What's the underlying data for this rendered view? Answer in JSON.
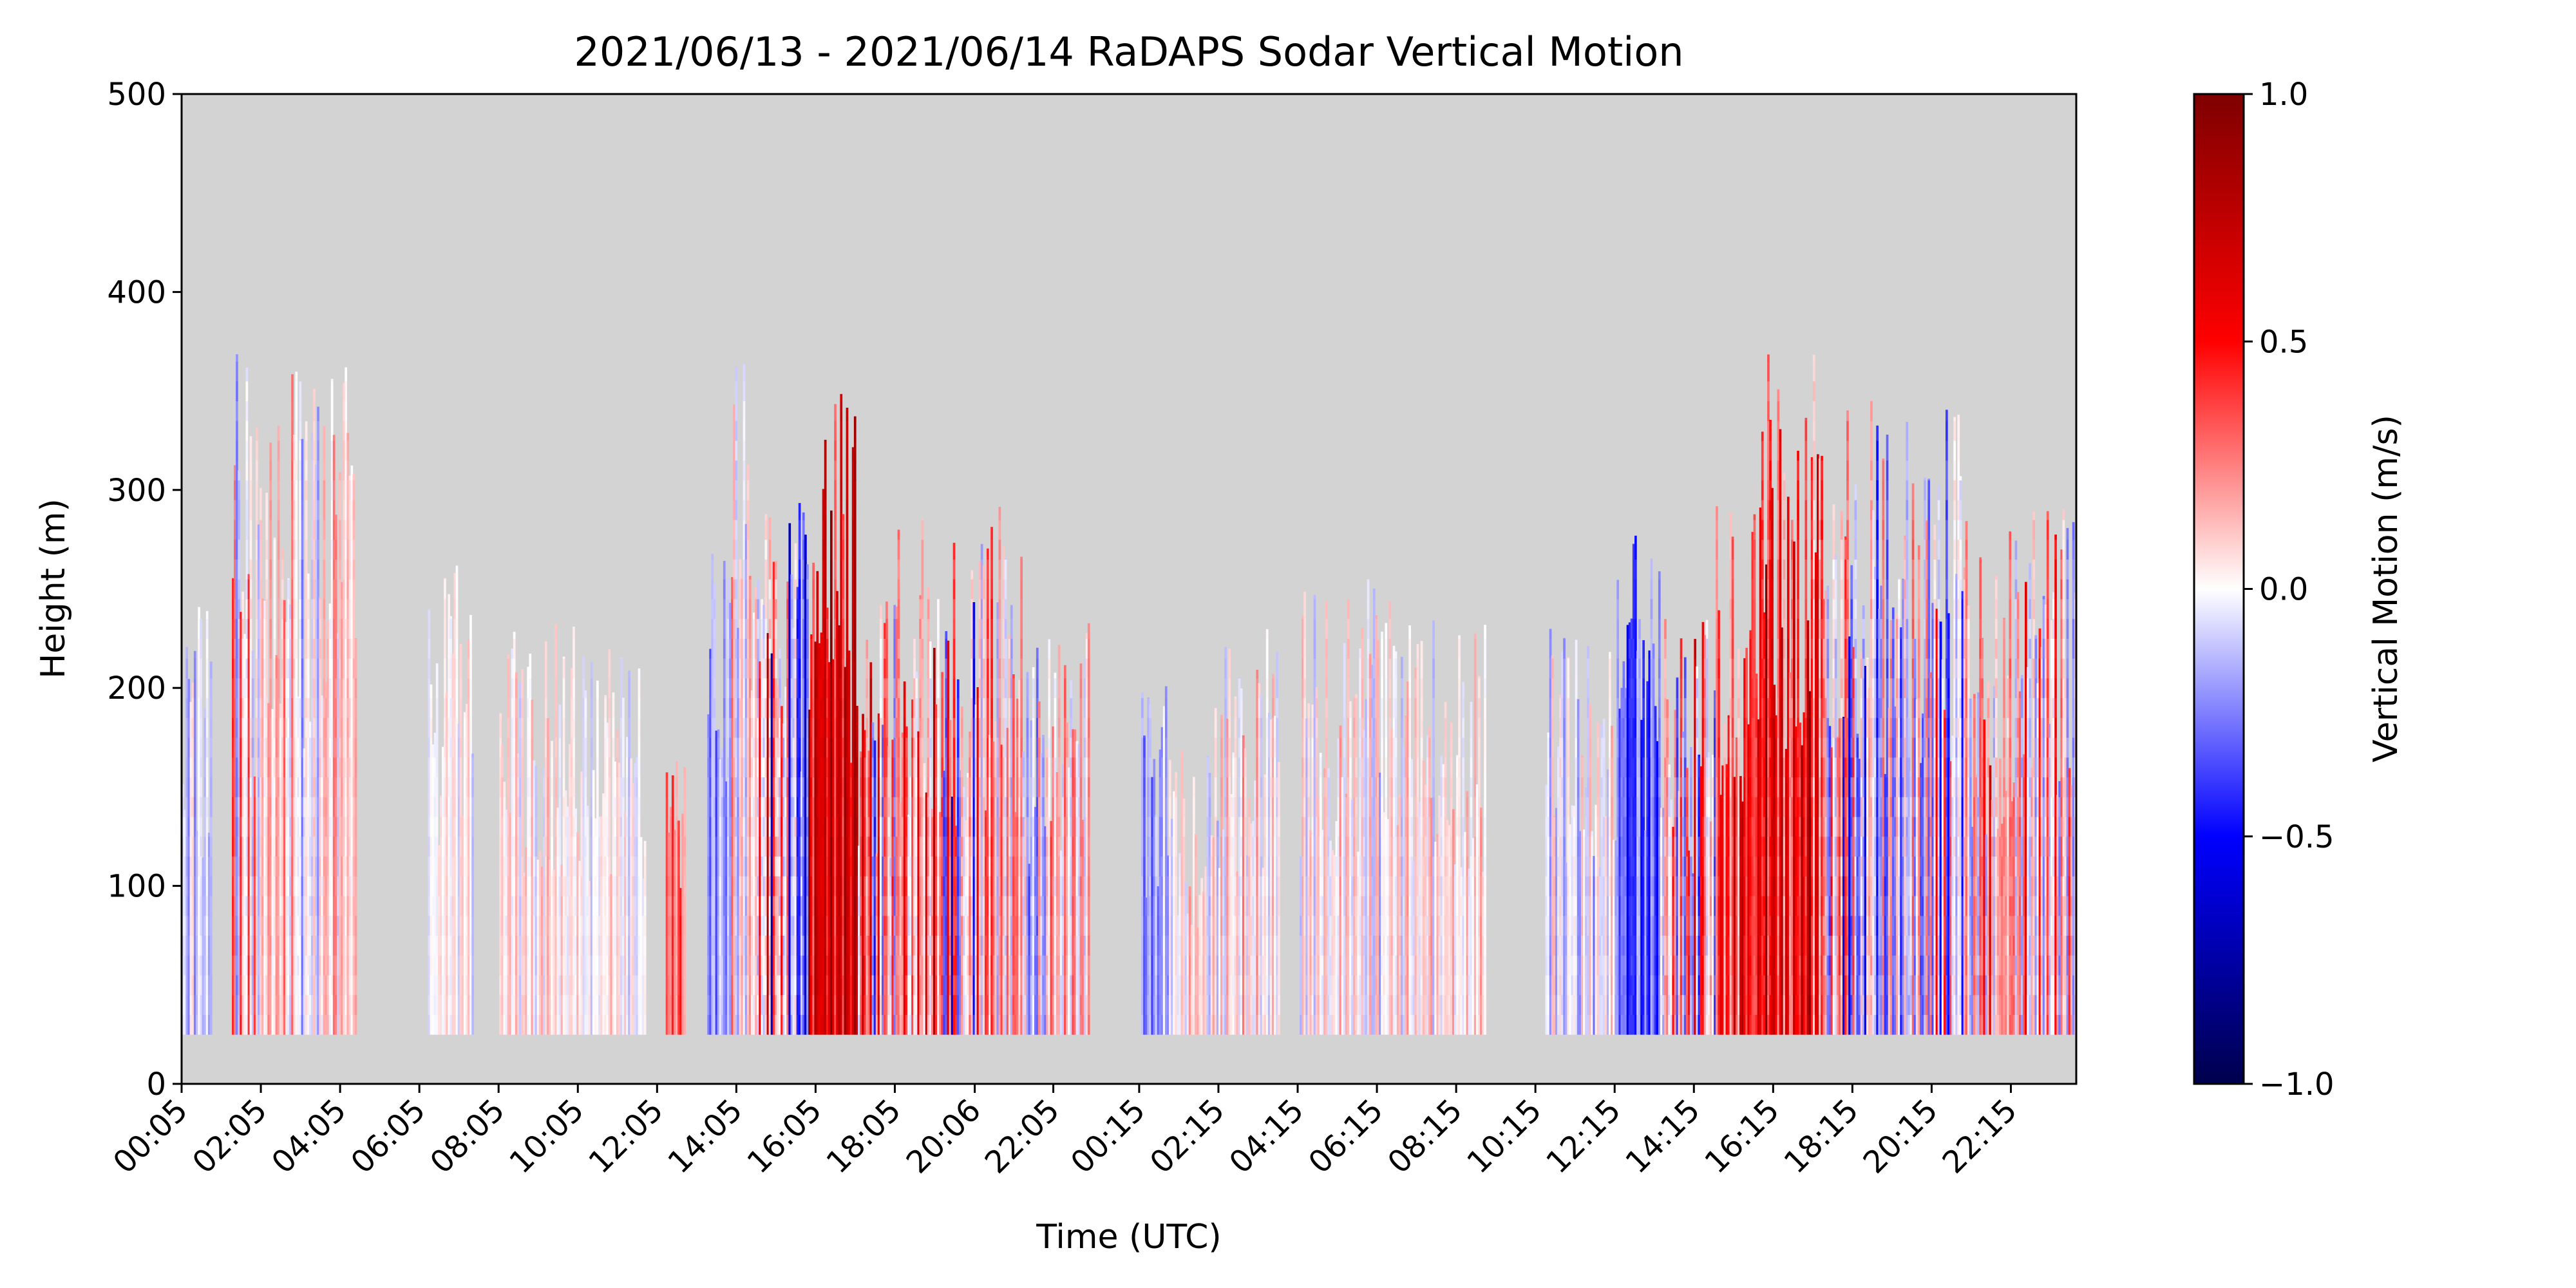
{
  "chart_data": {
    "type": "heatmap",
    "title": "2021/06/13 - 2021/06/14 RaDAPS Sodar Vertical Motion",
    "xlabel": "Time (UTC)",
    "ylabel": "Height (m)",
    "ylim": [
      0,
      500
    ],
    "yticks": [
      0,
      100,
      200,
      300,
      400,
      500
    ],
    "xlim_hours": [
      0.083,
      47.9
    ],
    "xticks": [
      {
        "label": "00:05",
        "hours": 0.083
      },
      {
        "label": "02:05",
        "hours": 2.083
      },
      {
        "label": "04:05",
        "hours": 4.083
      },
      {
        "label": "06:05",
        "hours": 6.083
      },
      {
        "label": "08:05",
        "hours": 8.083
      },
      {
        "label": "10:05",
        "hours": 10.083
      },
      {
        "label": "12:05",
        "hours": 12.083
      },
      {
        "label": "14:05",
        "hours": 14.083
      },
      {
        "label": "16:05",
        "hours": 16.083
      },
      {
        "label": "18:05",
        "hours": 18.083
      },
      {
        "label": "20:06",
        "hours": 20.1
      },
      {
        "label": "22:05",
        "hours": 22.083
      },
      {
        "label": "00:15",
        "hours": 24.25
      },
      {
        "label": "02:15",
        "hours": 26.25
      },
      {
        "label": "04:15",
        "hours": 28.25
      },
      {
        "label": "06:15",
        "hours": 30.25
      },
      {
        "label": "08:15",
        "hours": 32.25
      },
      {
        "label": "10:15",
        "hours": 34.25
      },
      {
        "label": "12:15",
        "hours": 36.25
      },
      {
        "label": "14:15",
        "hours": 38.25
      },
      {
        "label": "16:15",
        "hours": 40.25
      },
      {
        "label": "18:15",
        "hours": 42.25
      },
      {
        "label": "20:15",
        "hours": 44.25
      },
      {
        "label": "22:15",
        "hours": 46.25
      }
    ],
    "colorbar": {
      "label": "Vertical Motion (m/s)",
      "range": [
        -1.0,
        1.0
      ],
      "ticks": [
        "1.0",
        "0.5",
        "0.0",
        "−0.5",
        "−1.0"
      ],
      "colormap": "seismic",
      "colors": [
        "#00004c",
        "#0000ff",
        "#ffffff",
        "#ff0000",
        "#7f0000"
      ]
    },
    "missing_color": "#d3d3d3",
    "grid": false,
    "data_bottom_height_m": 25,
    "segments": [
      {
        "start": 0.083,
        "end": 0.85,
        "top": 245,
        "mean": -0.1,
        "amp": 0.2
      },
      {
        "start": 1.35,
        "end": 1.9,
        "top": 370,
        "mean": 0.1,
        "amp": 0.35
      },
      {
        "start": 1.9,
        "end": 2.7,
        "top": 340,
        "mean": 0.1,
        "amp": 0.25
      },
      {
        "start": 2.7,
        "end": 3.6,
        "top": 370,
        "mean": 0.0,
        "amp": 0.25
      },
      {
        "start": 3.6,
        "end": 4.5,
        "top": 385,
        "mean": 0.15,
        "amp": 0.25
      },
      {
        "start": 6.3,
        "end": 7.45,
        "top": 265,
        "mean": 0.0,
        "amp": 0.12
      },
      {
        "start": 8.1,
        "end": 9.1,
        "top": 235,
        "mean": 0.05,
        "amp": 0.15
      },
      {
        "start": 9.1,
        "end": 10.15,
        "top": 235,
        "mean": 0.05,
        "amp": 0.15
      },
      {
        "start": 10.15,
        "end": 11.8,
        "top": 220,
        "mean": 0.0,
        "amp": 0.15
      },
      {
        "start": 12.3,
        "end": 12.8,
        "top": 190,
        "mean": 0.3,
        "amp": 0.15
      },
      {
        "start": 13.35,
        "end": 13.9,
        "top": 280,
        "mean": -0.2,
        "amp": 0.2
      },
      {
        "start": 13.9,
        "end": 14.6,
        "top": 400,
        "mean": 0.1,
        "amp": 0.3
      },
      {
        "start": 14.6,
        "end": 15.3,
        "top": 310,
        "mean": 0.1,
        "amp": 0.7
      },
      {
        "start": 15.3,
        "end": 15.9,
        "top": 300,
        "mean": -0.2,
        "amp": 0.5
      },
      {
        "start": 15.9,
        "end": 17.1,
        "top": 355,
        "mean": 0.65,
        "amp": 0.3
      },
      {
        "start": 17.1,
        "end": 18.0,
        "top": 250,
        "mean": 0.2,
        "amp": 0.55
      },
      {
        "start": 18.0,
        "end": 19.3,
        "top": 295,
        "mean": 0.25,
        "amp": 0.5
      },
      {
        "start": 19.3,
        "end": 20.1,
        "top": 280,
        "mean": 0.0,
        "amp": 0.55
      },
      {
        "start": 20.1,
        "end": 21.3,
        "top": 295,
        "mean": 0.2,
        "amp": 0.35
      },
      {
        "start": 21.3,
        "end": 22.0,
        "top": 240,
        "mean": -0.15,
        "amp": 0.4
      },
      {
        "start": 22.0,
        "end": 23.0,
        "top": 235,
        "mean": 0.1,
        "amp": 0.3
      },
      {
        "start": 24.3,
        "end": 25.0,
        "top": 205,
        "mean": -0.2,
        "amp": 0.2
      },
      {
        "start": 25.0,
        "end": 26.0,
        "top": 175,
        "mean": 0.05,
        "amp": 0.15
      },
      {
        "start": 26.0,
        "end": 27.8,
        "top": 235,
        "mean": 0.05,
        "amp": 0.2
      },
      {
        "start": 28.3,
        "end": 29.8,
        "top": 255,
        "mean": 0.05,
        "amp": 0.2
      },
      {
        "start": 29.8,
        "end": 31.0,
        "top": 255,
        "mean": 0.0,
        "amp": 0.2
      },
      {
        "start": 31.0,
        "end": 33.0,
        "top": 235,
        "mean": 0.05,
        "amp": 0.18
      },
      {
        "start": 34.5,
        "end": 36.3,
        "top": 235,
        "mean": -0.05,
        "amp": 0.2
      },
      {
        "start": 36.3,
        "end": 37.4,
        "top": 280,
        "mean": -0.35,
        "amp": 0.25
      },
      {
        "start": 37.4,
        "end": 38.8,
        "top": 235,
        "mean": 0.1,
        "amp": 0.55
      },
      {
        "start": 38.8,
        "end": 39.8,
        "top": 295,
        "mean": 0.45,
        "amp": 0.3
      },
      {
        "start": 39.8,
        "end": 41.5,
        "top": 370,
        "mean": 0.55,
        "amp": 0.45
      },
      {
        "start": 41.5,
        "end": 42.8,
        "top": 350,
        "mean": 0.0,
        "amp": 0.6
      },
      {
        "start": 42.8,
        "end": 44.2,
        "top": 340,
        "mean": -0.15,
        "amp": 0.5
      },
      {
        "start": 44.2,
        "end": 45.2,
        "top": 355,
        "mean": 0.0,
        "amp": 0.45
      },
      {
        "start": 45.2,
        "end": 46.5,
        "top": 280,
        "mean": 0.2,
        "amp": 0.45
      },
      {
        "start": 46.5,
        "end": 47.9,
        "top": 295,
        "mean": 0.1,
        "amp": 0.45
      }
    ]
  }
}
